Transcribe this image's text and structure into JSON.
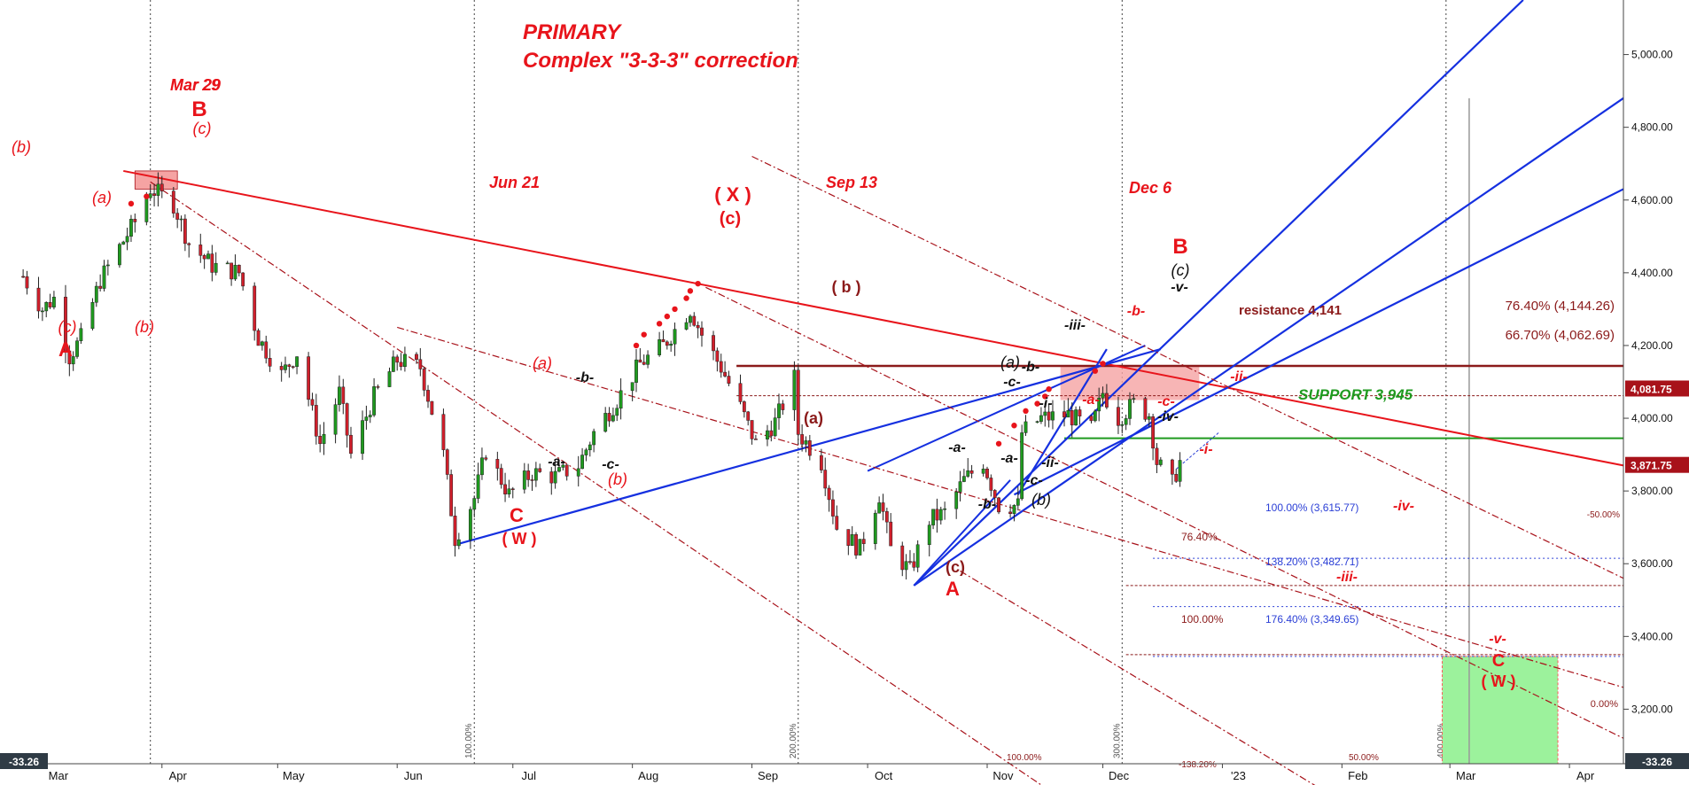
{
  "chart_data": {
    "type": "candlestick",
    "title": "PRIMARY",
    "subtitle": "Complex \"3-3-3\" correction",
    "x_ticks": [
      "Mar",
      "Apr",
      "May",
      "Jun",
      "Jul",
      "Aug",
      "Sep",
      "Oct",
      "Nov",
      "Dec",
      "'23",
      "Feb",
      "Mar",
      "Apr"
    ],
    "y_ticks": [
      "5,000.00",
      "4,800.00",
      "4,600.00",
      "4,400.00",
      "4,200.00",
      "4,000.00",
      "3,800.00",
      "3,600.00",
      "3,400.00",
      "3,200.00"
    ],
    "ylim": [
      3050,
      5150
    ],
    "bottom_left_value": "-33.26",
    "bottom_right_value": "-33.26",
    "price_tags": [
      {
        "label": "4,081.75",
        "value": 4081.75,
        "color": "#a8121a"
      },
      {
        "label": "3,871.75",
        "value": 3871.75,
        "color": "#a8121a"
      }
    ],
    "date_markers": [
      {
        "label": "Mar 29",
        "date": "2022-03-29"
      },
      {
        "label": "Jun 21",
        "date": "2022-06-21"
      },
      {
        "label": "Sep 13",
        "date": "2022-09-13"
      },
      {
        "label": "Dec 6",
        "date": "2022-12-06"
      }
    ],
    "vertical_line_labels": [
      "100.00%",
      "200.00%",
      "300.00%",
      "400.00%"
    ],
    "horizontal_levels": [
      {
        "label": "resistance 4,141",
        "value": 4141
      },
      {
        "label": "SUPPORT 3,945",
        "value": 3945
      },
      {
        "label": "76.40% (4,144.26)",
        "value": 4144.26
      },
      {
        "label": "66.70% (4,062.69)",
        "value": 4062.69
      },
      {
        "label": "100.00% (3,615.77)",
        "value": 3615.77
      },
      {
        "label": "138.20% (3,482.71)",
        "value": 3482.71
      },
      {
        "label": "176.40% (3,349.65)",
        "value": 3349.65
      },
      {
        "label": "76.40%",
        "value": 3540
      },
      {
        "label": "100.00%",
        "value": 3340
      },
      {
        "label": "-50.00%",
        "value": 3615
      },
      {
        "label": "0.00%",
        "value": 3180
      }
    ],
    "channel_labels": [
      "100.00%",
      "50.00%",
      "-138.20%"
    ],
    "wave_labels": [
      "(b)",
      "(c)",
      "A",
      "(a)",
      "(b)",
      "Mar 29",
      "B",
      "(c)",
      "C",
      "( W )",
      "(a)",
      "-a-",
      "-b-",
      "-c-",
      "(b)",
      "( X )",
      "(c)",
      "( b )",
      "(a)",
      "(c)",
      "A",
      "-a-",
      "-b-",
      "-a-",
      "-c-",
      "(b)",
      "(a)",
      "-b-",
      "-c-",
      "-i-",
      "-ii-",
      "-iii-",
      "-a-",
      "-b-",
      "-c-",
      "B",
      "(c)",
      "-v-",
      "-iv-",
      "-i-",
      "-ii-",
      "-iv-",
      "-iii-",
      "-v-",
      "C",
      "( W )"
    ],
    "series": [
      {
        "name": "",
        "dates": [
          "2022-02-24",
          "2022-03-01",
          "2022-03-04",
          "2022-03-08",
          "2022-03-11",
          "2022-03-16",
          "2022-03-21",
          "2022-03-25",
          "2022-03-29",
          "2022-04-04",
          "2022-04-08",
          "2022-04-14",
          "2022-04-21",
          "2022-04-26",
          "2022-05-02",
          "2022-05-06",
          "2022-05-12",
          "2022-05-17",
          "2022-05-20",
          "2022-05-26",
          "2022-06-01",
          "2022-06-07",
          "2022-06-13",
          "2022-06-16",
          "2022-06-21",
          "2022-06-24",
          "2022-06-30",
          "2022-07-06",
          "2022-07-12",
          "2022-07-18",
          "2022-07-22",
          "2022-07-28",
          "2022-08-03",
          "2022-08-09",
          "2022-08-16",
          "2022-08-19",
          "2022-08-24",
          "2022-08-29",
          "2022-09-02",
          "2022-09-07",
          "2022-09-12",
          "2022-09-13",
          "2022-09-19",
          "2022-09-23",
          "2022-09-29",
          "2022-10-04",
          "2022-10-07",
          "2022-10-12",
          "2022-10-17",
          "2022-10-21",
          "2022-10-26",
          "2022-10-31",
          "2022-11-04",
          "2022-11-09",
          "2022-11-10",
          "2022-11-15",
          "2022-11-22",
          "2022-11-28",
          "2022-12-01",
          "2022-12-05",
          "2022-12-09",
          "2022-12-13",
          "2022-12-15",
          "2022-12-19",
          "2022-12-21"
        ],
        "values": [
          4390,
          4300,
          4330,
          4170,
          4220,
          4380,
          4470,
          4540,
          4632,
          4590,
          4480,
          4420,
          4400,
          4220,
          4120,
          4180,
          3930,
          4070,
          3900,
          4060,
          4160,
          4140,
          3900,
          3670,
          3780,
          3910,
          3790,
          3850,
          3840,
          3870,
          3960,
          4050,
          4150,
          4200,
          4300,
          4230,
          4140,
          4030,
          3930,
          3990,
          4110,
          3960,
          3880,
          3700,
          3640,
          3790,
          3640,
          3580,
          3720,
          3740,
          3830,
          3880,
          3760,
          3760,
          3960,
          4000,
          4010,
          3970,
          4070,
          4000,
          4040,
          4010,
          3880,
          3820,
          3880
        ]
      }
    ]
  }
}
